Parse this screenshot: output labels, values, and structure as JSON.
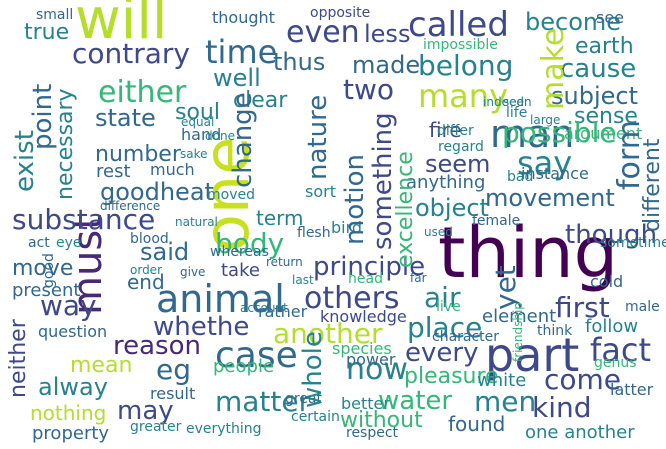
{
  "palette": [
    "#440154",
    "#482878",
    "#3e4989",
    "#31688e",
    "#26828e",
    "#1f9e89",
    "#35b779",
    "#6ece58",
    "#b5de2b",
    "#c8e020"
  ],
  "words": [
    {
      "t": "will",
      "c": "#b5de2b",
      "v": false
    },
    {
      "t": "one",
      "c": "#c8e020",
      "v": true
    },
    {
      "t": "thing",
      "c": "#440154",
      "v": false
    },
    {
      "t": "must",
      "c": "#482878",
      "v": true
    },
    {
      "t": "animal",
      "c": "#31688e",
      "v": false
    },
    {
      "t": "part",
      "c": "#3e4989",
      "v": false
    },
    {
      "t": "time",
      "c": "#31688e",
      "v": false
    },
    {
      "t": "called",
      "c": "#3e4989",
      "v": false
    },
    {
      "t": "man",
      "c": "#31688e",
      "v": false
    },
    {
      "t": "contrary",
      "c": "#3e4989",
      "v": false
    },
    {
      "t": "either",
      "c": "#35b779",
      "v": false
    },
    {
      "t": "case",
      "c": "#31688e",
      "v": false
    },
    {
      "t": "become",
      "c": "#26828e",
      "v": false
    },
    {
      "t": "earth",
      "c": "#26828e",
      "v": false
    },
    {
      "t": "even",
      "c": "#3e4989",
      "v": false
    },
    {
      "t": "true",
      "c": "#26828e",
      "v": false
    },
    {
      "t": "less",
      "c": "#3e4989",
      "v": false
    },
    {
      "t": "thus",
      "c": "#31688e",
      "v": false
    },
    {
      "t": "two",
      "c": "#3e4989",
      "v": false
    },
    {
      "t": "many",
      "c": "#b5de2b",
      "v": false
    },
    {
      "t": "made",
      "c": "#31688e",
      "v": false
    },
    {
      "t": "belong",
      "c": "#26828e",
      "v": false
    },
    {
      "t": "cause",
      "c": "#26828e",
      "v": false
    },
    {
      "t": "well",
      "c": "#26828e",
      "v": false
    },
    {
      "t": "clear",
      "c": "#26828e",
      "v": false
    },
    {
      "t": "soul",
      "c": "#26828e",
      "v": false
    },
    {
      "t": "subject",
      "c": "#31688e",
      "v": false
    },
    {
      "t": "state",
      "c": "#31688e",
      "v": false
    },
    {
      "t": "number",
      "c": "#31688e",
      "v": false
    },
    {
      "t": "sense",
      "c": "#26828e",
      "v": false
    },
    {
      "t": "argument",
      "c": "#35b779",
      "v": false
    },
    {
      "t": "goodheat",
      "c": "#31688e",
      "v": false
    },
    {
      "t": "rest",
      "c": "#31688e",
      "v": false
    },
    {
      "t": "say",
      "c": "#26828e",
      "v": false
    },
    {
      "t": "seem",
      "c": "#3e4989",
      "v": false
    },
    {
      "t": "possible",
      "c": "#35b779",
      "v": false
    },
    {
      "t": "fire",
      "c": "#3e4989",
      "v": false
    },
    {
      "t": "substance",
      "c": "#3e4989",
      "v": false
    },
    {
      "t": "object",
      "c": "#26828e",
      "v": false
    },
    {
      "t": "movement",
      "c": "#31688e",
      "v": false
    },
    {
      "t": "body",
      "c": "#35b779",
      "v": false
    },
    {
      "t": "said",
      "c": "#31688e",
      "v": false
    },
    {
      "t": "term",
      "c": "#26828e",
      "v": false
    },
    {
      "t": "principle",
      "c": "#3e4989",
      "v": false
    },
    {
      "t": "though",
      "c": "#3e4989",
      "v": false
    },
    {
      "t": "way",
      "c": "#3e4989",
      "v": false
    },
    {
      "t": "move",
      "c": "#31688e",
      "v": false
    },
    {
      "t": "others",
      "c": "#3e4989",
      "v": false
    },
    {
      "t": "air",
      "c": "#26828e",
      "v": false
    },
    {
      "t": "first",
      "c": "#3e4989",
      "v": false
    },
    {
      "t": "whethe",
      "c": "#3e4989",
      "v": false
    },
    {
      "t": "another",
      "c": "#b5de2b",
      "v": false
    },
    {
      "t": "place",
      "c": "#26828e",
      "v": false
    },
    {
      "t": "fact",
      "c": "#3e4989",
      "v": false
    },
    {
      "t": "reason",
      "c": "#482878",
      "v": false
    },
    {
      "t": "eg",
      "c": "#31688e",
      "v": false
    },
    {
      "t": "mean",
      "c": "#b5de2b",
      "v": false
    },
    {
      "t": "now",
      "c": "#26828e",
      "v": false
    },
    {
      "t": "every",
      "c": "#3e4989",
      "v": false
    },
    {
      "t": "alway",
      "c": "#26828e",
      "v": false
    },
    {
      "t": "people",
      "c": "#35b779",
      "v": false
    },
    {
      "t": "nothing",
      "c": "#b5de2b",
      "v": false
    },
    {
      "t": "may",
      "c": "#3e4989",
      "v": false
    },
    {
      "t": "matter",
      "c": "#26828e",
      "v": false
    },
    {
      "t": "water",
      "c": "#35b779",
      "v": false
    },
    {
      "t": "men",
      "c": "#26828e",
      "v": false
    },
    {
      "t": "kind",
      "c": "#3e4989",
      "v": false
    },
    {
      "t": "come",
      "c": "#3e4989",
      "v": false
    },
    {
      "t": "without",
      "c": "#35b779",
      "v": false
    },
    {
      "t": "pleasure",
      "c": "#35b779",
      "v": false
    },
    {
      "t": "white",
      "c": "#26828e",
      "v": false
    },
    {
      "t": "found",
      "c": "#31688e",
      "v": false
    },
    {
      "t": "one another",
      "c": "#26828e",
      "v": false
    },
    {
      "t": "power",
      "c": "#31688e",
      "v": false
    },
    {
      "t": "species",
      "c": "#35b779",
      "v": false
    },
    {
      "t": "better",
      "c": "#26828e",
      "v": false
    },
    {
      "t": "element",
      "c": "#31688e",
      "v": false
    },
    {
      "t": "follow",
      "c": "#26828e",
      "v": false
    },
    {
      "t": "end",
      "c": "#31688e",
      "v": false
    },
    {
      "t": "take",
      "c": "#3e4989",
      "v": false
    },
    {
      "t": "present",
      "c": "#31688e",
      "v": false
    },
    {
      "t": "question",
      "c": "#31688e",
      "v": false
    },
    {
      "t": "result",
      "c": "#31688e",
      "v": false
    },
    {
      "t": "property",
      "c": "#31688e",
      "v": false
    },
    {
      "t": "rather",
      "c": "#31688e",
      "v": false
    },
    {
      "t": "knowledge",
      "c": "#3e4989",
      "v": false
    },
    {
      "t": "whereas",
      "c": "#31688e",
      "v": false
    },
    {
      "t": "much",
      "c": "#31688e",
      "v": false
    },
    {
      "t": "anything",
      "c": "#31688e",
      "v": false
    },
    {
      "t": "instance",
      "c": "#31688e",
      "v": false
    },
    {
      "t": "sometime",
      "c": "#26828e",
      "v": false
    },
    {
      "t": "female",
      "c": "#31688e",
      "v": false
    },
    {
      "t": "cold",
      "c": "#31688e",
      "v": false
    },
    {
      "t": "think",
      "c": "#31688e",
      "v": false
    },
    {
      "t": "character",
      "c": "#31688e",
      "v": false
    },
    {
      "t": "genus",
      "c": "#35b779",
      "v": false
    },
    {
      "t": "latter",
      "c": "#31688e",
      "v": false
    },
    {
      "t": "certain",
      "c": "#26828e",
      "v": false
    },
    {
      "t": "respect",
      "c": "#31688e",
      "v": false
    },
    {
      "t": "great",
      "c": "#31688e",
      "v": false
    },
    {
      "t": "greater",
      "c": "#26828e",
      "v": false
    },
    {
      "t": "everything",
      "c": "#26828e",
      "v": false
    },
    {
      "t": "opposite",
      "c": "#3e4989",
      "v": false
    },
    {
      "t": "thought",
      "c": "#31688e",
      "v": false
    },
    {
      "t": "impossible",
      "c": "#35b779",
      "v": false
    },
    {
      "t": "small",
      "c": "#31688e",
      "v": false
    },
    {
      "t": "see",
      "c": "#31688e",
      "v": false
    },
    {
      "t": "hand",
      "c": "#31688e",
      "v": false
    },
    {
      "t": "sort",
      "c": "#26828e",
      "v": false
    },
    {
      "t": "bird",
      "c": "#26828e",
      "v": false
    },
    {
      "t": "act",
      "c": "#31688e",
      "v": false
    },
    {
      "t": "eye",
      "c": "#26828e",
      "v": false
    },
    {
      "t": "blood",
      "c": "#31688e",
      "v": false
    },
    {
      "t": "moved",
      "c": "#26828e",
      "v": false
    },
    {
      "t": "difference",
      "c": "#31688e",
      "v": false
    },
    {
      "t": "natural",
      "c": "#26828e",
      "v": false
    },
    {
      "t": "give",
      "c": "#31688e",
      "v": false
    },
    {
      "t": "male",
      "c": "#31688e",
      "v": false
    },
    {
      "t": "last",
      "c": "#26828e",
      "v": false
    },
    {
      "t": "head",
      "c": "#35b779",
      "v": false
    },
    {
      "t": "flesh",
      "c": "#31688e",
      "v": false
    },
    {
      "t": "seen",
      "c": "#31688e",
      "v": false
    },
    {
      "t": "bad",
      "c": "#26828e",
      "v": false
    },
    {
      "t": "life",
      "c": "#26828e",
      "v": false
    },
    {
      "t": "large",
      "c": "#26828e",
      "v": false
    },
    {
      "t": "regard",
      "c": "#26828e",
      "v": false
    },
    {
      "t": "differ",
      "c": "#26828e",
      "v": false
    },
    {
      "t": "indeed",
      "c": "#26828e",
      "v": false
    },
    {
      "t": "sake",
      "c": "#26828e",
      "v": false
    },
    {
      "t": "equal",
      "c": "#26828e",
      "v": false
    },
    {
      "t": "done",
      "c": "#26828e",
      "v": false
    },
    {
      "t": "used",
      "c": "#26828e",
      "v": false
    },
    {
      "t": "live",
      "c": "#35b779",
      "v": false
    },
    {
      "t": "order",
      "c": "#26828e",
      "v": false
    },
    {
      "t": "far",
      "c": "#31688e",
      "v": false
    },
    {
      "t": "return",
      "c": "#31688e",
      "v": false
    },
    {
      "t": "account",
      "c": "#26828e",
      "v": false
    },
    {
      "t": "form",
      "c": "#31688e",
      "v": true
    },
    {
      "t": "different",
      "c": "#31688e",
      "v": true
    },
    {
      "t": "exist",
      "c": "#26828e",
      "v": true
    },
    {
      "t": "point",
      "c": "#31688e",
      "v": true
    },
    {
      "t": "necessary",
      "c": "#26828e",
      "v": true
    },
    {
      "t": "nature",
      "c": "#31688e",
      "v": true
    },
    {
      "t": "change",
      "c": "#31688e",
      "v": true
    },
    {
      "t": "motion",
      "c": "#31688e",
      "v": true
    },
    {
      "t": "something",
      "c": "#3e4989",
      "v": true
    },
    {
      "t": "excellence",
      "c": "#35b779",
      "v": true
    },
    {
      "t": "make",
      "c": "#b5de2b",
      "v": true
    },
    {
      "t": "whole",
      "c": "#26828e",
      "v": true
    },
    {
      "t": "neither",
      "c": "#3e4989",
      "v": true
    },
    {
      "t": "yet",
      "c": "#31688e",
      "v": true
    },
    {
      "t": "good",
      "c": "#31688e",
      "v": true
    },
    {
      "t": "friendship",
      "c": "#35b779",
      "v": true
    }
  ]
}
